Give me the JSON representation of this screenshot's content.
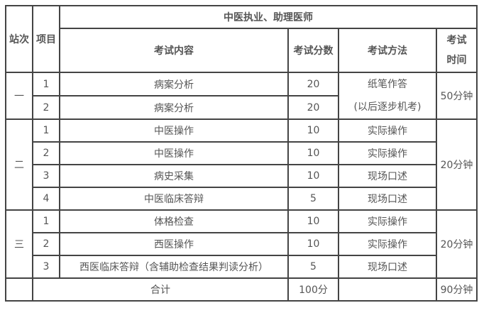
{
  "header": {
    "station": "站次",
    "item": "项目",
    "group": "中医执业、助理医师",
    "content": "考试内容",
    "score": "考试分数",
    "method": "考试方法",
    "time_l1": "考试",
    "time_l2": "时间"
  },
  "stations": [
    {
      "label": "一",
      "time": "50分钟",
      "rows": [
        {
          "no": "1",
          "content": "病案分析",
          "score": "20"
        },
        {
          "no": "2",
          "content": "病案分析",
          "score": "20"
        }
      ],
      "method_l1": "纸笔作答",
      "method_l2": "(以后逐步机考)"
    },
    {
      "label": "二",
      "time": "20分钟",
      "rows": [
        {
          "no": "1",
          "content": "中医操作",
          "score": "10",
          "method": "实际操作"
        },
        {
          "no": "2",
          "content": "中医操作",
          "score": "10",
          "method": "实际操作"
        },
        {
          "no": "3",
          "content": "病史采集",
          "score": "10",
          "method": "现场口述"
        },
        {
          "no": "4",
          "content": "中医临床答辩",
          "score": "5",
          "method": "现场口述"
        }
      ]
    },
    {
      "label": "三",
      "time": "20分钟",
      "rows": [
        {
          "no": "1",
          "content": "体格检查",
          "score": "10",
          "method": "实际操作"
        },
        {
          "no": "2",
          "content": "西医操作",
          "score": "10",
          "method": "实际操作"
        },
        {
          "no": "3",
          "content": "西医临床答辩（含辅助检查结果判读分析）",
          "score": "5",
          "method": "现场口述"
        }
      ]
    }
  ],
  "total": {
    "label": "合计",
    "score": "100分",
    "time": "90分钟"
  }
}
